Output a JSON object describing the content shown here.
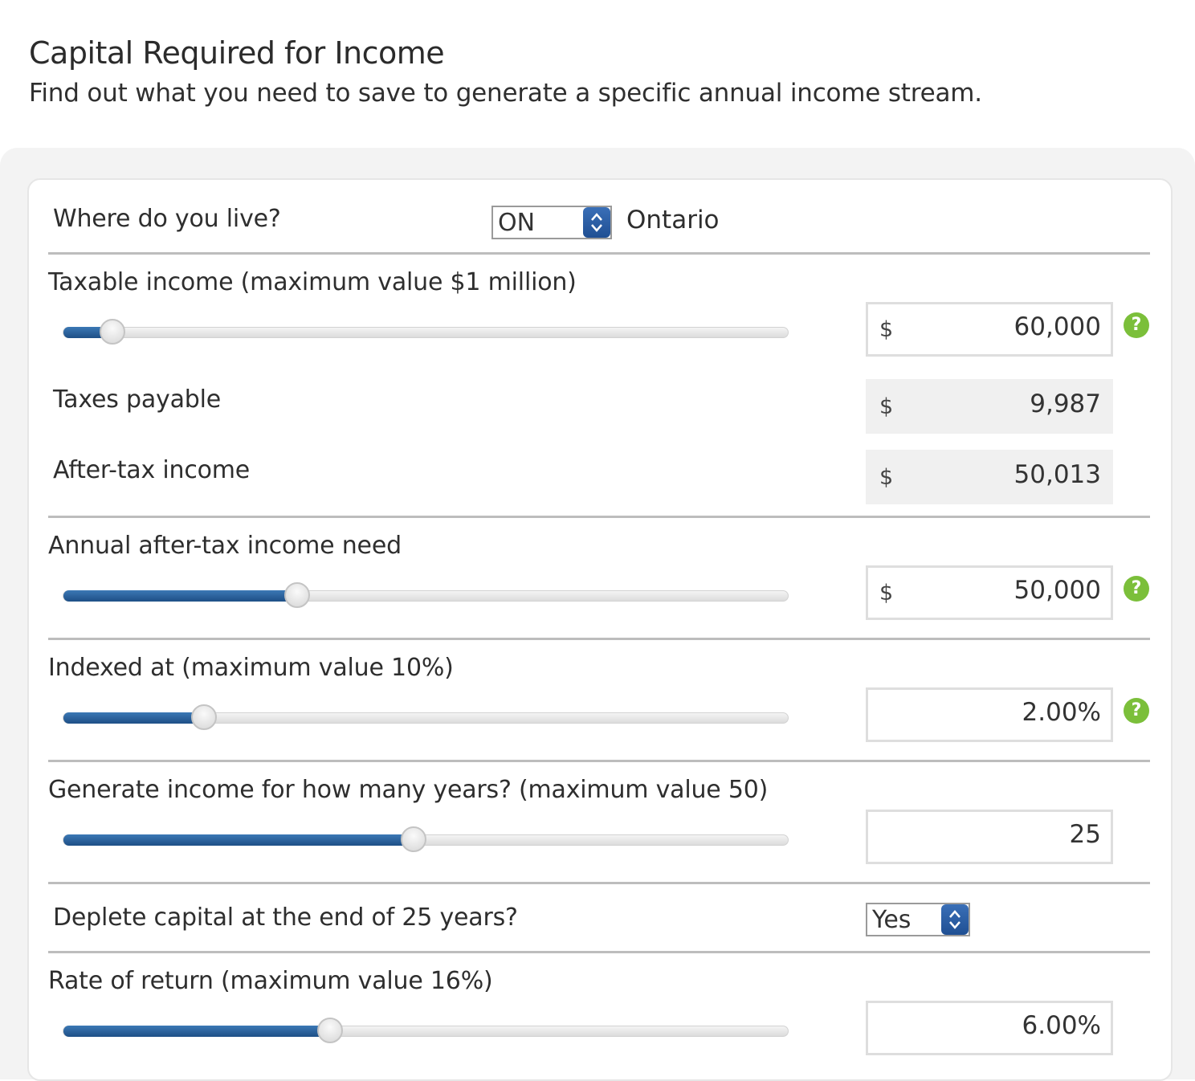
{
  "header": {
    "title": "Capital Required for Income",
    "subtitle": "Find out what you need to save to generate a specific annual income stream."
  },
  "location": {
    "label": "Where do you live?",
    "selected": "ON",
    "region_name": "Ontario"
  },
  "taxable_income": {
    "label": "Taxable income (maximum value $1 million)",
    "currency": "$",
    "value": "60,000",
    "slider_fraction": 0.068
  },
  "taxes_payable": {
    "label": "Taxes payable",
    "currency": "$",
    "value": "9,987"
  },
  "after_tax_income": {
    "label": "After-tax income",
    "currency": "$",
    "value": "50,013"
  },
  "income_need": {
    "label": "Annual after-tax income need",
    "currency": "$",
    "value": "50,000",
    "slider_fraction": 0.323
  },
  "indexed": {
    "label": "Indexed at (maximum value 10%)",
    "value": "2.00%",
    "slider_fraction": 0.194
  },
  "years": {
    "label": "Generate income for how many years? (maximum value 50)",
    "value": "25",
    "slider_fraction": 0.483
  },
  "deplete": {
    "label": "Deplete capital at the end of 25 years?",
    "selected": "Yes"
  },
  "rate_of_return": {
    "label": "Rate of return (maximum value 16%)",
    "value": "6.00%",
    "slider_fraction": 0.368
  },
  "icons": {
    "help": "?",
    "help_color": "#7bbf3a",
    "accent": "#2a5f9e"
  }
}
